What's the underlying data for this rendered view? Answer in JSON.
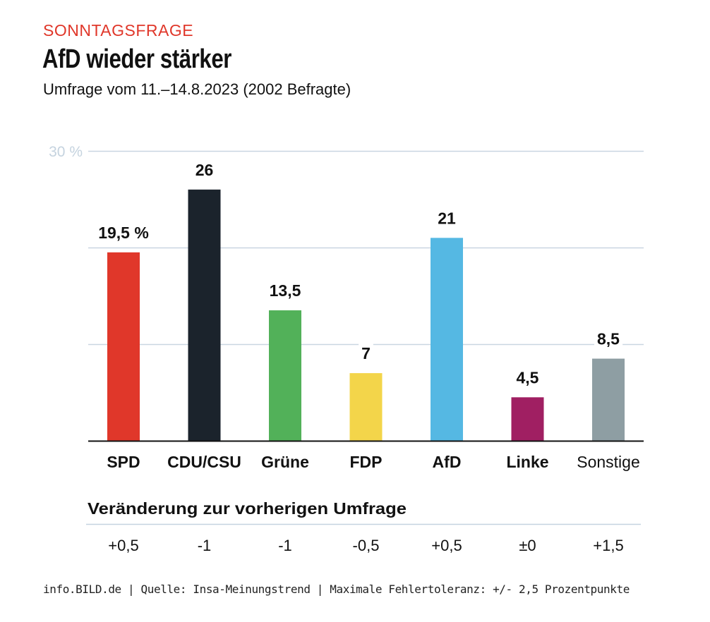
{
  "header": {
    "kicker": "SONNTAGSFRAGE",
    "title": "AfD wieder stärker",
    "subtitle": "Umfrage vom 11.–14.8.2023 (2002 Befragte)"
  },
  "chart_data": {
    "type": "bar",
    "title": "AfD wieder stärker",
    "subtitle": "Umfrage vom 11.–14.8.2023 (2002 Befragte)",
    "xlabel": "",
    "ylabel": "",
    "ylim": [
      0,
      30
    ],
    "y_ticks": [
      10,
      20,
      30
    ],
    "y_tick_label_shown": "30 %",
    "grid": true,
    "categories": [
      "SPD",
      "CDU/CSU",
      "Grüne",
      "FDP",
      "AfD",
      "Linke",
      "Sonstige"
    ],
    "values": [
      19.5,
      26,
      13.5,
      7,
      21,
      4.5,
      8.5
    ],
    "value_labels": [
      "19,5 %",
      "26",
      "13,5",
      "7",
      "21",
      "4,5",
      "8,5"
    ],
    "colors": [
      "#e0372a",
      "#1b232c",
      "#52b159",
      "#f3d54a",
      "#55b8e3",
      "#a01f62",
      "#8e9ea3"
    ],
    "category_bold": [
      true,
      true,
      true,
      true,
      true,
      true,
      false
    ],
    "change_section_title": "Veränderung zur vorherigen Umfrage",
    "changes": [
      "+0,5",
      "-1",
      "-1",
      "-0,5",
      "+0,5",
      "±0",
      "+1,5"
    ]
  },
  "footer": "info.BILD.de | Quelle: Insa-Meinungstrend | Maximale Fehlertoleranz: +/- 2,5 Prozentpunkte"
}
